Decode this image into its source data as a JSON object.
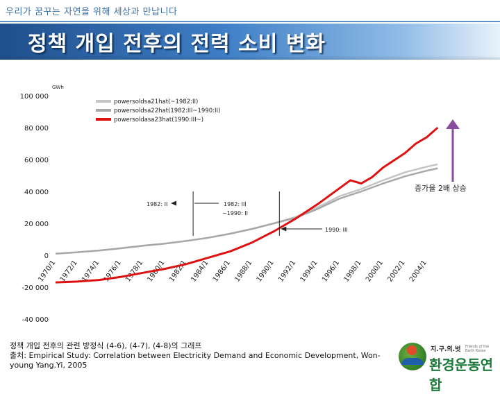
{
  "header": {
    "slogan": "우리가 꿈꾸는 자연을 위해 세상과 만납니다",
    "title": "정책 개입 전후의 전력 소비 변화"
  },
  "caption": {
    "line1": "정책 개입 전후의 관련 방정식 (4-6), (4-7), (4-8)의 그래프",
    "line2": "출처: Empirical Study: Correlation between Electricity Demand and Economic Development, Won-young Yang.Yi, 2005"
  },
  "logo": {
    "small": "지.구.의.벗",
    "tiny": "Friends of the Earth Korea",
    "big": "환경운동연합",
    "icon": "fem-logo-icon"
  },
  "chart_data": {
    "type": "line",
    "unit_label": "GWh",
    "ylim": [
      -40000,
      100000
    ],
    "yticks": [
      100000,
      80000,
      60000,
      40000,
      20000,
      0,
      -20000,
      -40000
    ],
    "ytick_labels": [
      "100 000",
      "80 000",
      "60 000",
      "40 000",
      "20 000",
      "0",
      "-20 000",
      "-40 000"
    ],
    "xlim": [
      1970,
      2005.3
    ],
    "xtick_labels": [
      "1970/1",
      "1972/1",
      "1974/1",
      "1976/1",
      "1978/1",
      "1980/1",
      "1982/1",
      "1984/1",
      "1986/1",
      "1988/1",
      "1990/1",
      "1992/1",
      "1994/1",
      "1996/1",
      "1998/1",
      "2000/1",
      "2002/1",
      "2004/1"
    ],
    "xtick_values": [
      1970,
      1972,
      1974,
      1976,
      1978,
      1980,
      1982,
      1984,
      1986,
      1988,
      1990,
      1992,
      1994,
      1996,
      1998,
      2000,
      2002,
      2004
    ],
    "series": [
      {
        "name": "powersoldsa21hat(~1982:II)",
        "color": "#c4c4c4",
        "width": 2.5,
        "points": [
          [
            1970,
            1000
          ],
          [
            1972,
            1900
          ],
          [
            1974,
            3000
          ],
          [
            1976,
            4400
          ],
          [
            1978,
            6000
          ],
          [
            1980,
            7300
          ],
          [
            1982,
            9000
          ],
          [
            1984,
            11000
          ],
          [
            1986,
            13500
          ],
          [
            1988,
            16500
          ],
          [
            1990,
            20000
          ],
          [
            1992,
            24000
          ],
          [
            1994,
            30000
          ],
          [
            1996,
            37000
          ],
          [
            1998,
            41500
          ],
          [
            2000,
            47000
          ],
          [
            2002,
            52000
          ],
          [
            2004,
            55500
          ],
          [
            2005,
            57000
          ]
        ]
      },
      {
        "name": "powersoldsa22hat(1982:III~1990:II)",
        "color": "#a8a8a8",
        "width": 2.5,
        "points": [
          [
            1970,
            1000
          ],
          [
            1972,
            1900
          ],
          [
            1974,
            3000
          ],
          [
            1976,
            4400
          ],
          [
            1978,
            6000
          ],
          [
            1980,
            7300
          ],
          [
            1982,
            9000
          ],
          [
            1984,
            11000
          ],
          [
            1986,
            13500
          ],
          [
            1988,
            16500
          ],
          [
            1990,
            20000
          ],
          [
            1992,
            23500
          ],
          [
            1994,
            29000
          ],
          [
            1996,
            35500
          ],
          [
            1998,
            40000
          ],
          [
            2000,
            45000
          ],
          [
            2002,
            49500
          ],
          [
            2004,
            53000
          ],
          [
            2005,
            54500
          ]
        ]
      },
      {
        "name": "powersoldasa23hat(1990:III~)",
        "color": "#dd1111",
        "width": 3,
        "points": [
          [
            1970,
            -17000
          ],
          [
            1972,
            -16500
          ],
          [
            1974,
            -15500
          ],
          [
            1976,
            -13500
          ],
          [
            1978,
            -11000
          ],
          [
            1980,
            -8500
          ],
          [
            1982,
            -5500
          ],
          [
            1984,
            -1500
          ],
          [
            1986,
            2500
          ],
          [
            1988,
            8000
          ],
          [
            1990,
            15000
          ],
          [
            1992,
            23000
          ],
          [
            1994,
            32000
          ],
          [
            1996,
            42000
          ],
          [
            1997,
            47000
          ],
          [
            1998,
            45000
          ],
          [
            1999,
            49000
          ],
          [
            2000,
            55000
          ],
          [
            2002,
            64000
          ],
          [
            2003,
            70000
          ],
          [
            2004,
            74000
          ],
          [
            2005,
            80000
          ]
        ]
      }
    ],
    "annotations": {
      "label_1982": "1982: II",
      "label_1982_1990": "1982: III ~1990: II",
      "label_1990": "1990: III",
      "increase_note": "증가율 2배 상승"
    }
  }
}
